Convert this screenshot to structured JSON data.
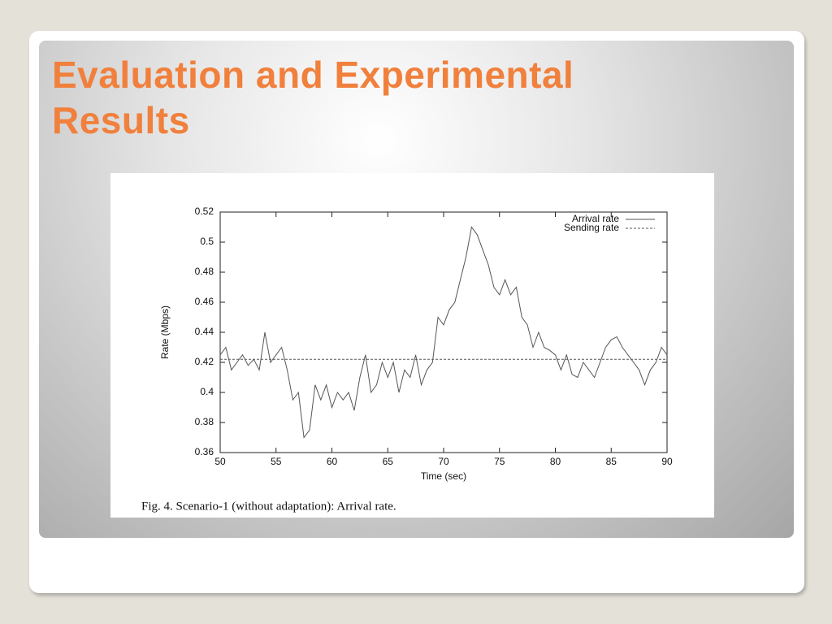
{
  "slide": {
    "title": "Evaluation and Experimental Results"
  },
  "chart_data": {
    "type": "line",
    "caption": "Fig. 4.   Scenario-1 (without adaptation): Arrival rate.",
    "x_label": "Time (sec)",
    "y_label": "Rate (Mbps)",
    "xlim": [
      50,
      90
    ],
    "xticks": [
      50,
      55,
      60,
      65,
      70,
      75,
      80,
      85,
      90
    ],
    "ylim": [
      0.36,
      0.52
    ],
    "yticks": [
      0.36,
      0.38,
      0.4,
      0.42,
      0.44,
      0.46,
      0.48,
      0.5,
      0.52
    ],
    "legend": "upper right",
    "series": [
      {
        "name": "Arrival rate",
        "color": "#555555",
        "line_style": "solid",
        "x": [
          50,
          50.5,
          51,
          51.5,
          52,
          52.5,
          53,
          53.5,
          54,
          54.5,
          55,
          55.5,
          56,
          56.5,
          57,
          57.5,
          58,
          58.5,
          59,
          59.5,
          60,
          60.5,
          61,
          61.5,
          62,
          62.5,
          63,
          63.5,
          64,
          64.5,
          65,
          65.5,
          66,
          66.5,
          67,
          67.5,
          68,
          68.5,
          69,
          69.5,
          70,
          70.5,
          71,
          71.5,
          72,
          72.5,
          73,
          73.5,
          74,
          74.5,
          75,
          75.5,
          76,
          76.5,
          77,
          77.5,
          78,
          78.5,
          79,
          79.5,
          80,
          80.5,
          81,
          81.5,
          82,
          82.5,
          83,
          83.5,
          84,
          84.5,
          85,
          85.5,
          86,
          86.5,
          87,
          87.5,
          88,
          88.5,
          89,
          89.5,
          90
        ],
        "values": [
          0.425,
          0.43,
          0.415,
          0.42,
          0.425,
          0.418,
          0.422,
          0.415,
          0.44,
          0.42,
          0.425,
          0.43,
          0.415,
          0.395,
          0.4,
          0.37,
          0.375,
          0.405,
          0.395,
          0.405,
          0.39,
          0.4,
          0.395,
          0.4,
          0.388,
          0.41,
          0.425,
          0.4,
          0.405,
          0.42,
          0.41,
          0.42,
          0.4,
          0.415,
          0.41,
          0.425,
          0.405,
          0.415,
          0.42,
          0.45,
          0.445,
          0.455,
          0.46,
          0.475,
          0.49,
          0.51,
          0.505,
          0.495,
          0.485,
          0.47,
          0.465,
          0.475,
          0.465,
          0.47,
          0.45,
          0.445,
          0.43,
          0.44,
          0.43,
          0.428,
          0.425,
          0.415,
          0.425,
          0.412,
          0.41,
          0.42,
          0.415,
          0.41,
          0.42,
          0.43,
          0.435,
          0.437,
          0.43,
          0.425,
          0.42,
          0.415,
          0.405,
          0.415,
          0.42,
          0.43,
          0.425
        ]
      },
      {
        "name": "Sending rate",
        "color": "#555555",
        "line_style": "dashed",
        "x": [
          50,
          90
        ],
        "values": [
          0.422,
          0.422
        ]
      }
    ]
  }
}
